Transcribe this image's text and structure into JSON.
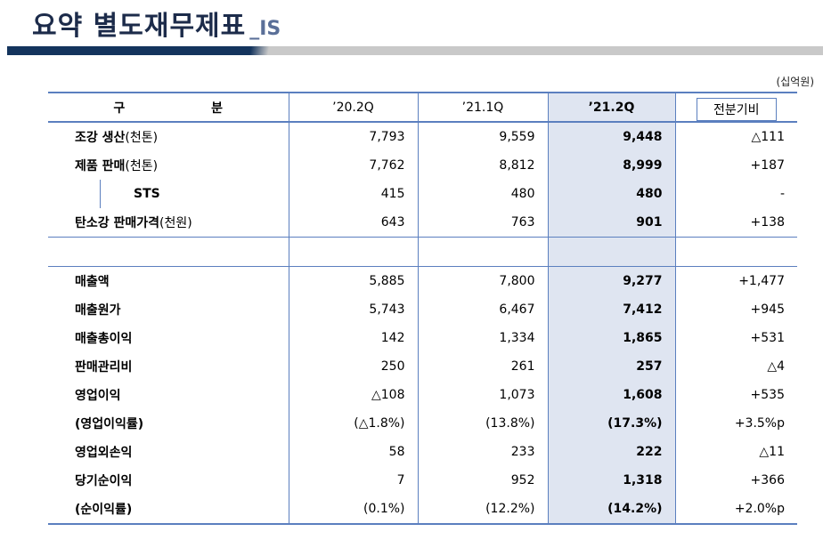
{
  "header": {
    "title": "요약 별도재무제표",
    "suffix": "_IS",
    "unit": "(십억원)"
  },
  "table": {
    "columns": [
      "구 분",
      "’20.2Q",
      "’21.1Q",
      "’21.2Q",
      "전분기비"
    ],
    "group1": [
      {
        "label": "조강 생산",
        "sub": "(천톤)",
        "v": [
          "7,793",
          "9,559",
          "9,448",
          "△111"
        ]
      },
      {
        "label": "제품 판매",
        "sub": "(천톤)",
        "v": [
          "7,762",
          "8,812",
          "8,999",
          "+187"
        ]
      },
      {
        "label": "STS",
        "sub": "",
        "v": [
          "415",
          "480",
          "480",
          "-"
        ]
      },
      {
        "label": "탄소강 판매가격",
        "sub": "(천원)",
        "v": [
          "643",
          "763",
          "901",
          "+138"
        ]
      }
    ],
    "group2": [
      {
        "label": "매출액",
        "v": [
          "5,885",
          "7,800",
          "9,277",
          "+1,477"
        ]
      },
      {
        "label": "매출원가",
        "v": [
          "5,743",
          "6,467",
          "7,412",
          "+945"
        ]
      },
      {
        "label": "매출총이익",
        "v": [
          "142",
          "1,334",
          "1,865",
          "+531"
        ]
      },
      {
        "label": "판매관리비",
        "v": [
          "250",
          "261",
          "257",
          "△4"
        ]
      },
      {
        "label": "영업이익",
        "v": [
          "△108",
          "1,073",
          "1,608",
          "+535"
        ]
      },
      {
        "label": "(영업이익률)",
        "v": [
          "(△1.8%)",
          "(13.8%)",
          "(17.3%)",
          "+3.5%p"
        ]
      },
      {
        "label": "영업외손익",
        "v": [
          "58",
          "233",
          "222",
          "△11"
        ]
      },
      {
        "label": "당기순이익",
        "v": [
          "7",
          "952",
          "1,318",
          "+366"
        ]
      },
      {
        "label": "(순이익률)",
        "v": [
          "(0.1%)",
          "(12.2%)",
          "(14.2%)",
          "+2.0%p"
        ]
      }
    ]
  }
}
